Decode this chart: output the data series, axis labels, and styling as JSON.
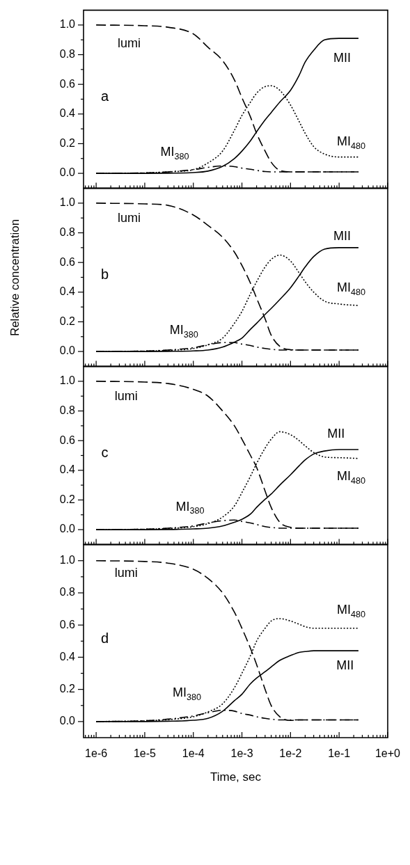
{
  "chart_data": [
    {
      "type": "line",
      "annotations": [
        "a"
      ],
      "log": "x",
      "marker": "none",
      "legend": false,
      "tick_labels": "y",
      "xlim": [
        5.5e-07,
        1
      ],
      "ylim": [
        -0.1,
        1.1
      ],
      "xticks": [
        {
          "value": 6e-07,
          "label": null
        },
        {
          "value": 7e-07,
          "label": null
        },
        {
          "value": 8e-07,
          "label": null
        },
        {
          "value": 9e-07,
          "label": null
        },
        1e-06,
        {
          "value": 2e-06,
          "label": null
        },
        {
          "value": 3e-06,
          "label": null
        },
        {
          "value": 4e-06,
          "label": null
        },
        {
          "value": 5e-06,
          "label": null
        },
        {
          "value": 6e-06,
          "label": null
        },
        {
          "value": 7e-06,
          "label": null
        },
        {
          "value": 8e-06,
          "label": null
        },
        {
          "value": 9e-06,
          "label": null
        },
        1e-05,
        {
          "value": 2e-05,
          "label": null
        },
        {
          "value": 3e-05,
          "label": null
        },
        {
          "value": 4e-05,
          "label": null
        },
        {
          "value": 5e-05,
          "label": null
        },
        {
          "value": 6e-05,
          "label": null
        },
        {
          "value": 7e-05,
          "label": null
        },
        {
          "value": 8e-05,
          "label": null
        },
        {
          "value": 9e-05,
          "label": null
        },
        0.0001,
        {
          "value": 0.0002,
          "label": null
        },
        {
          "value": 0.0003,
          "label": null
        },
        {
          "value": 0.0004,
          "label": null
        },
        {
          "value": 0.0005,
          "label": null
        },
        {
          "value": 0.0006,
          "label": null
        },
        {
          "value": 0.0007,
          "label": null
        },
        {
          "value": 0.0008,
          "label": null
        },
        {
          "value": 0.0009,
          "label": null
        },
        0.001,
        {
          "value": 0.002,
          "label": null
        },
        {
          "value": 0.003,
          "label": null
        },
        {
          "value": 0.004,
          "label": null
        },
        {
          "value": 0.005,
          "label": null
        },
        {
          "value": 0.006,
          "label": null
        },
        {
          "value": 0.007,
          "label": null
        },
        {
          "value": 0.008,
          "label": null
        },
        {
          "value": 0.009,
          "label": null
        },
        0.01,
        {
          "value": 0.02,
          "label": null
        },
        {
          "value": 0.03,
          "label": null
        },
        {
          "value": 0.04,
          "label": null
        },
        {
          "value": 0.05,
          "label": null
        },
        {
          "value": 0.06,
          "label": null
        },
        {
          "value": 0.07,
          "label": null
        },
        {
          "value": 0.08,
          "label": null
        },
        {
          "value": 0.09,
          "label": null
        },
        0.1,
        {
          "value": 0.2,
          "label": null
        },
        {
          "value": 0.3,
          "label": null
        },
        {
          "value": 0.4,
          "label": null
        },
        {
          "value": 0.5,
          "label": null
        },
        {
          "value": 0.6,
          "label": null
        },
        {
          "value": 0.7,
          "label": null
        },
        {
          "value": 0.8,
          "label": null
        },
        {
          "value": 0.9,
          "label": null
        },
        1
      ],
      "yticks": [
        {
          "value": 0,
          "label": "0.0"
        },
        {
          "value": 0.1,
          "label": null
        },
        {
          "value": 0.2,
          "label": "0.2"
        },
        {
          "value": 0.3,
          "label": null
        },
        {
          "value": 0.4,
          "label": "0.4"
        },
        {
          "value": 0.5,
          "label": null
        },
        {
          "value": 0.6,
          "label": "0.6"
        },
        {
          "value": 0.7,
          "label": null
        },
        {
          "value": 0.8,
          "label": "0.8"
        },
        {
          "value": 0.9,
          "label": null
        },
        {
          "value": 1,
          "label": "1.0"
        }
      ],
      "x": [
        1e-06,
        1e-05,
        3e-05,
        0.0001,
        0.0002,
        0.0004,
        0.0007,
        0.001,
        0.0015,
        0.002,
        0.003,
        0.004,
        0.006,
        0.01,
        0.015,
        0.02,
        0.03,
        0.05,
        0.1,
        0.25
      ],
      "series": [
        {
          "name": "lumi",
          "color": "#000000",
          "line_style": "dashed",
          "values": [
            1.0,
            0.995,
            0.985,
            0.94,
            0.85,
            0.76,
            0.63,
            0.51,
            0.38,
            0.27,
            0.15,
            0.075,
            0.02,
            0.01,
            0.01,
            0.01,
            0.01,
            0.01,
            0.01,
            0.01
          ]
        },
        {
          "name": "MI$_{380}$",
          "color": "#000000",
          "line_style": "dashdot",
          "values": [
            0,
            0.003,
            0.01,
            0.025,
            0.04,
            0.05,
            0.045,
            0.035,
            0.027,
            0.02,
            0.012,
            0.01,
            0.01,
            0.01,
            0.01,
            0.01,
            0.01,
            0.01,
            0.01,
            0.01
          ]
        },
        {
          "name": "MI$_{480}$",
          "color": "#000000",
          "line_style": "dotted",
          "values": [
            0,
            0.003,
            0.01,
            0.025,
            0.07,
            0.15,
            0.29,
            0.39,
            0.48,
            0.54,
            0.585,
            0.59,
            0.56,
            0.46,
            0.35,
            0.27,
            0.18,
            0.13,
            0.11,
            0.11
          ]
        },
        {
          "name": "MII",
          "color": "#000000",
          "line_style": "solid",
          "values": [
            0,
            0,
            0.001,
            0.005,
            0.015,
            0.047,
            0.1,
            0.15,
            0.22,
            0.28,
            0.36,
            0.41,
            0.48,
            0.56,
            0.66,
            0.75,
            0.83,
            0.9,
            0.91,
            0.91
          ]
        }
      ]
    },
    {
      "type": "line",
      "ylabel": "Relative concentration",
      "annotations": [
        "b"
      ],
      "log": "x",
      "marker": "none",
      "legend": false,
      "tick_labels": "y",
      "xlim": [
        5.5e-07,
        1
      ],
      "ylim": [
        -0.1,
        1.1
      ],
      "xticks": [
        {
          "value": 6e-07,
          "label": null
        },
        {
          "value": 7e-07,
          "label": null
        },
        {
          "value": 8e-07,
          "label": null
        },
        {
          "value": 9e-07,
          "label": null
        },
        1e-06,
        {
          "value": 2e-06,
          "label": null
        },
        {
          "value": 3e-06,
          "label": null
        },
        {
          "value": 4e-06,
          "label": null
        },
        {
          "value": 5e-06,
          "label": null
        },
        {
          "value": 6e-06,
          "label": null
        },
        {
          "value": 7e-06,
          "label": null
        },
        {
          "value": 8e-06,
          "label": null
        },
        {
          "value": 9e-06,
          "label": null
        },
        1e-05,
        {
          "value": 2e-05,
          "label": null
        },
        {
          "value": 3e-05,
          "label": null
        },
        {
          "value": 4e-05,
          "label": null
        },
        {
          "value": 5e-05,
          "label": null
        },
        {
          "value": 6e-05,
          "label": null
        },
        {
          "value": 7e-05,
          "label": null
        },
        {
          "value": 8e-05,
          "label": null
        },
        {
          "value": 9e-05,
          "label": null
        },
        0.0001,
        {
          "value": 0.0002,
          "label": null
        },
        {
          "value": 0.0003,
          "label": null
        },
        {
          "value": 0.0004,
          "label": null
        },
        {
          "value": 0.0005,
          "label": null
        },
        {
          "value": 0.0006,
          "label": null
        },
        {
          "value": 0.0007,
          "label": null
        },
        {
          "value": 0.0008,
          "label": null
        },
        {
          "value": 0.0009,
          "label": null
        },
        0.001,
        {
          "value": 0.002,
          "label": null
        },
        {
          "value": 0.003,
          "label": null
        },
        {
          "value": 0.004,
          "label": null
        },
        {
          "value": 0.005,
          "label": null
        },
        {
          "value": 0.006,
          "label": null
        },
        {
          "value": 0.007,
          "label": null
        },
        {
          "value": 0.008,
          "label": null
        },
        {
          "value": 0.009,
          "label": null
        },
        0.01,
        {
          "value": 0.02,
          "label": null
        },
        {
          "value": 0.03,
          "label": null
        },
        {
          "value": 0.04,
          "label": null
        },
        {
          "value": 0.05,
          "label": null
        },
        {
          "value": 0.06,
          "label": null
        },
        {
          "value": 0.07,
          "label": null
        },
        {
          "value": 0.08,
          "label": null
        },
        {
          "value": 0.09,
          "label": null
        },
        0.1,
        {
          "value": 0.2,
          "label": null
        },
        {
          "value": 0.3,
          "label": null
        },
        {
          "value": 0.4,
          "label": null
        },
        {
          "value": 0.5,
          "label": null
        },
        {
          "value": 0.6,
          "label": null
        },
        {
          "value": 0.7,
          "label": null
        },
        {
          "value": 0.8,
          "label": null
        },
        {
          "value": 0.9,
          "label": null
        },
        1
      ],
      "yticks": [
        {
          "value": 0,
          "label": "0.0"
        },
        {
          "value": 0.1,
          "label": null
        },
        {
          "value": 0.2,
          "label": "0.2"
        },
        {
          "value": 0.3,
          "label": null
        },
        {
          "value": 0.4,
          "label": "0.4"
        },
        {
          "value": 0.5,
          "label": null
        },
        {
          "value": 0.6,
          "label": "0.6"
        },
        {
          "value": 0.7,
          "label": null
        },
        {
          "value": 0.8,
          "label": "0.8"
        },
        {
          "value": 0.9,
          "label": null
        },
        {
          "value": 1,
          "label": "1.0"
        }
      ],
      "x": [
        1e-06,
        1e-05,
        3e-05,
        0.0001,
        0.0002,
        0.0004,
        0.0007,
        0.001,
        0.0015,
        0.002,
        0.003,
        0.004,
        0.006,
        0.01,
        0.015,
        0.02,
        0.03,
        0.05,
        0.1,
        0.25
      ],
      "series": [
        {
          "name": "lumi",
          "color": "#000000",
          "line_style": "dashed",
          "values": [
            1.0,
            0.995,
            0.985,
            0.92,
            0.85,
            0.77,
            0.67,
            0.58,
            0.46,
            0.36,
            0.22,
            0.11,
            0.035,
            0.012,
            0.01,
            0.01,
            0.01,
            0.01,
            0.01,
            0.01
          ]
        },
        {
          "name": "MI$_{380}$",
          "color": "#000000",
          "line_style": "dashdot",
          "values": [
            0,
            0.003,
            0.01,
            0.025,
            0.045,
            0.06,
            0.06,
            0.05,
            0.04,
            0.03,
            0.02,
            0.015,
            0.01,
            0.01,
            0.01,
            0.01,
            0.01,
            0.01,
            0.01,
            0.01
          ]
        },
        {
          "name": "MI$_{480}$",
          "color": "#000000",
          "line_style": "dotted",
          "values": [
            0,
            0.003,
            0.008,
            0.02,
            0.045,
            0.09,
            0.19,
            0.27,
            0.39,
            0.47,
            0.57,
            0.62,
            0.65,
            0.61,
            0.53,
            0.47,
            0.4,
            0.34,
            0.32,
            0.31
          ]
        },
        {
          "name": "MII",
          "color": "#000000",
          "line_style": "solid",
          "values": [
            0,
            0,
            0.001,
            0.004,
            0.01,
            0.03,
            0.063,
            0.09,
            0.15,
            0.19,
            0.25,
            0.29,
            0.35,
            0.43,
            0.51,
            0.57,
            0.64,
            0.69,
            0.7,
            0.7
          ]
        }
      ]
    },
    {
      "type": "line",
      "annotations": [
        "c"
      ],
      "log": "x",
      "marker": "none",
      "legend": false,
      "tick_labels": "y",
      "xlim": [
        5.5e-07,
        1
      ],
      "ylim": [
        -0.1,
        1.1
      ],
      "xticks": [
        {
          "value": 6e-07,
          "label": null
        },
        {
          "value": 7e-07,
          "label": null
        },
        {
          "value": 8e-07,
          "label": null
        },
        {
          "value": 9e-07,
          "label": null
        },
        1e-06,
        {
          "value": 2e-06,
          "label": null
        },
        {
          "value": 3e-06,
          "label": null
        },
        {
          "value": 4e-06,
          "label": null
        },
        {
          "value": 5e-06,
          "label": null
        },
        {
          "value": 6e-06,
          "label": null
        },
        {
          "value": 7e-06,
          "label": null
        },
        {
          "value": 8e-06,
          "label": null
        },
        {
          "value": 9e-06,
          "label": null
        },
        1e-05,
        {
          "value": 2e-05,
          "label": null
        },
        {
          "value": 3e-05,
          "label": null
        },
        {
          "value": 4e-05,
          "label": null
        },
        {
          "value": 5e-05,
          "label": null
        },
        {
          "value": 6e-05,
          "label": null
        },
        {
          "value": 7e-05,
          "label": null
        },
        {
          "value": 8e-05,
          "label": null
        },
        {
          "value": 9e-05,
          "label": null
        },
        0.0001,
        {
          "value": 0.0002,
          "label": null
        },
        {
          "value": 0.0003,
          "label": null
        },
        {
          "value": 0.0004,
          "label": null
        },
        {
          "value": 0.0005,
          "label": null
        },
        {
          "value": 0.0006,
          "label": null
        },
        {
          "value": 0.0007,
          "label": null
        },
        {
          "value": 0.0008,
          "label": null
        },
        {
          "value": 0.0009,
          "label": null
        },
        0.001,
        {
          "value": 0.002,
          "label": null
        },
        {
          "value": 0.003,
          "label": null
        },
        {
          "value": 0.004,
          "label": null
        },
        {
          "value": 0.005,
          "label": null
        },
        {
          "value": 0.006,
          "label": null
        },
        {
          "value": 0.007,
          "label": null
        },
        {
          "value": 0.008,
          "label": null
        },
        {
          "value": 0.009,
          "label": null
        },
        0.01,
        {
          "value": 0.02,
          "label": null
        },
        {
          "value": 0.03,
          "label": null
        },
        {
          "value": 0.04,
          "label": null
        },
        {
          "value": 0.05,
          "label": null
        },
        {
          "value": 0.06,
          "label": null
        },
        {
          "value": 0.07,
          "label": null
        },
        {
          "value": 0.08,
          "label": null
        },
        {
          "value": 0.09,
          "label": null
        },
        0.1,
        {
          "value": 0.2,
          "label": null
        },
        {
          "value": 0.3,
          "label": null
        },
        {
          "value": 0.4,
          "label": null
        },
        {
          "value": 0.5,
          "label": null
        },
        {
          "value": 0.6,
          "label": null
        },
        {
          "value": 0.7,
          "label": null
        },
        {
          "value": 0.8,
          "label": null
        },
        {
          "value": 0.9,
          "label": null
        },
        1
      ],
      "yticks": [
        {
          "value": 0,
          "label": "0.0"
        },
        {
          "value": 0.1,
          "label": null
        },
        {
          "value": 0.2,
          "label": "0.2"
        },
        {
          "value": 0.3,
          "label": null
        },
        {
          "value": 0.4,
          "label": "0.4"
        },
        {
          "value": 0.5,
          "label": null
        },
        {
          "value": 0.6,
          "label": "0.6"
        },
        {
          "value": 0.7,
          "label": null
        },
        {
          "value": 0.8,
          "label": "0.8"
        },
        {
          "value": 0.9,
          "label": null
        },
        {
          "value": 1,
          "label": "1.0"
        }
      ],
      "x": [
        1e-06,
        1e-05,
        3e-05,
        0.0001,
        0.0002,
        0.0004,
        0.0007,
        0.001,
        0.0015,
        0.002,
        0.003,
        0.004,
        0.006,
        0.01,
        0.015,
        0.02,
        0.03,
        0.05,
        0.1,
        0.25
      ],
      "series": [
        {
          "name": "lumi",
          "color": "#000000",
          "line_style": "dashed",
          "values": [
            1.0,
            0.995,
            0.985,
            0.946,
            0.9,
            0.8,
            0.7,
            0.61,
            0.5,
            0.42,
            0.26,
            0.15,
            0.05,
            0.015,
            0.01,
            0.01,
            0.01,
            0.01,
            0.01,
            0.01
          ]
        },
        {
          "name": "MI$_{380}$",
          "color": "#000000",
          "line_style": "dashdot",
          "values": [
            0,
            0.003,
            0.01,
            0.025,
            0.045,
            0.06,
            0.065,
            0.055,
            0.045,
            0.035,
            0.02,
            0.015,
            0.01,
            0.01,
            0.01,
            0.01,
            0.01,
            0.01,
            0.01,
            0.01
          ]
        },
        {
          "name": "MI$_{480}$",
          "color": "#000000",
          "line_style": "dotted",
          "values": [
            0,
            0.003,
            0.008,
            0.02,
            0.04,
            0.085,
            0.16,
            0.25,
            0.36,
            0.445,
            0.55,
            0.61,
            0.66,
            0.64,
            0.6,
            0.565,
            0.52,
            0.49,
            0.485,
            0.48
          ]
        },
        {
          "name": "MII",
          "color": "#000000",
          "line_style": "solid",
          "values": [
            0,
            0,
            0.001,
            0.005,
            0.01,
            0.025,
            0.05,
            0.07,
            0.105,
            0.15,
            0.205,
            0.24,
            0.3,
            0.37,
            0.43,
            0.47,
            0.51,
            0.53,
            0.54,
            0.54
          ]
        }
      ]
    },
    {
      "type": "line",
      "xlabel": "Time, sec",
      "annotations": [
        "d"
      ],
      "log": "x",
      "marker": "none",
      "legend": false,
      "xlim": [
        5.5e-07,
        1
      ],
      "ylim": [
        -0.1,
        1.1
      ],
      "xticks": [
        {
          "value": 6e-07,
          "label": null
        },
        {
          "value": 7e-07,
          "label": null
        },
        {
          "value": 8e-07,
          "label": null
        },
        {
          "value": 9e-07,
          "label": null
        },
        {
          "value": 1e-06,
          "label": "1e-6"
        },
        {
          "value": 2e-06,
          "label": null
        },
        {
          "value": 3e-06,
          "label": null
        },
        {
          "value": 4e-06,
          "label": null
        },
        {
          "value": 5e-06,
          "label": null
        },
        {
          "value": 6e-06,
          "label": null
        },
        {
          "value": 7e-06,
          "label": null
        },
        {
          "value": 8e-06,
          "label": null
        },
        {
          "value": 9e-06,
          "label": null
        },
        {
          "value": 1e-05,
          "label": "1e-5"
        },
        {
          "value": 2e-05,
          "label": null
        },
        {
          "value": 3e-05,
          "label": null
        },
        {
          "value": 4e-05,
          "label": null
        },
        {
          "value": 5e-05,
          "label": null
        },
        {
          "value": 6e-05,
          "label": null
        },
        {
          "value": 7e-05,
          "label": null
        },
        {
          "value": 8e-05,
          "label": null
        },
        {
          "value": 9e-05,
          "label": null
        },
        {
          "value": 0.0001,
          "label": "1e-4"
        },
        {
          "value": 0.0002,
          "label": null
        },
        {
          "value": 0.0003,
          "label": null
        },
        {
          "value": 0.0004,
          "label": null
        },
        {
          "value": 0.0005,
          "label": null
        },
        {
          "value": 0.0006,
          "label": null
        },
        {
          "value": 0.0007,
          "label": null
        },
        {
          "value": 0.0008,
          "label": null
        },
        {
          "value": 0.0009,
          "label": null
        },
        {
          "value": 0.001,
          "label": "1e-3"
        },
        {
          "value": 0.002,
          "label": null
        },
        {
          "value": 0.003,
          "label": null
        },
        {
          "value": 0.004,
          "label": null
        },
        {
          "value": 0.005,
          "label": null
        },
        {
          "value": 0.006,
          "label": null
        },
        {
          "value": 0.007,
          "label": null
        },
        {
          "value": 0.008,
          "label": null
        },
        {
          "value": 0.009,
          "label": null
        },
        {
          "value": 0.01,
          "label": "1e-2"
        },
        {
          "value": 0.02,
          "label": null
        },
        {
          "value": 0.03,
          "label": null
        },
        {
          "value": 0.04,
          "label": null
        },
        {
          "value": 0.05,
          "label": null
        },
        {
          "value": 0.06,
          "label": null
        },
        {
          "value": 0.07,
          "label": null
        },
        {
          "value": 0.08,
          "label": null
        },
        {
          "value": 0.09,
          "label": null
        },
        {
          "value": 0.1,
          "label": "1e-1"
        },
        {
          "value": 0.2,
          "label": null
        },
        {
          "value": 0.3,
          "label": null
        },
        {
          "value": 0.4,
          "label": null
        },
        {
          "value": 0.5,
          "label": null
        },
        {
          "value": 0.6,
          "label": null
        },
        {
          "value": 0.7,
          "label": null
        },
        {
          "value": 0.8,
          "label": null
        },
        {
          "value": 0.9,
          "label": null
        },
        {
          "value": 1,
          "label": "1e+0"
        }
      ],
      "yticks": [
        {
          "value": 0,
          "label": "0.0"
        },
        {
          "value": 0.1,
          "label": null
        },
        {
          "value": 0.2,
          "label": "0.2"
        },
        {
          "value": 0.3,
          "label": null
        },
        {
          "value": 0.4,
          "label": "0.4"
        },
        {
          "value": 0.5,
          "label": null
        },
        {
          "value": 0.6,
          "label": "0.6"
        },
        {
          "value": 0.7,
          "label": null
        },
        {
          "value": 0.8,
          "label": "0.8"
        },
        {
          "value": 0.9,
          "label": null
        },
        {
          "value": 1,
          "label": "1.0"
        }
      ],
      "x": [
        1e-06,
        1e-05,
        3e-05,
        0.0001,
        0.0002,
        0.0004,
        0.0007,
        0.001,
        0.0015,
        0.002,
        0.003,
        0.004,
        0.006,
        0.01,
        0.015,
        0.02,
        0.03,
        0.05,
        0.1,
        0.25
      ],
      "series": [
        {
          "name": "lumi",
          "color": "#000000",
          "line_style": "dashed",
          "values": [
            1.0,
            0.995,
            0.985,
            0.947,
            0.89,
            0.8,
            0.68,
            0.58,
            0.455,
            0.355,
            0.2,
            0.1,
            0.03,
            0.007,
            0.01,
            0.01,
            0.01,
            0.01,
            0.01,
            0.01
          ]
        },
        {
          "name": "MI$_{380}$",
          "color": "#000000",
          "line_style": "dashdot",
          "values": [
            0,
            0.005,
            0.015,
            0.035,
            0.055,
            0.07,
            0.065,
            0.05,
            0.04,
            0.03,
            0.02,
            0.015,
            0.01,
            0.01,
            0.01,
            0.01,
            0.01,
            0.01,
            0.01,
            0.01
          ]
        },
        {
          "name": "MI$_{480}$",
          "color": "#000000",
          "line_style": "dotted",
          "values": [
            0,
            0.005,
            0.012,
            0.03,
            0.06,
            0.11,
            0.21,
            0.3,
            0.41,
            0.5,
            0.58,
            0.625,
            0.64,
            0.625,
            0.605,
            0.59,
            0.58,
            0.58,
            0.58,
            0.58
          ]
        },
        {
          "name": "MII",
          "color": "#000000",
          "line_style": "solid",
          "values": [
            0,
            0,
            0.002,
            0.008,
            0.02,
            0.064,
            0.13,
            0.17,
            0.235,
            0.27,
            0.31,
            0.34,
            0.38,
            0.41,
            0.43,
            0.435,
            0.44,
            0.44,
            0.44,
            0.44
          ]
        }
      ]
    }
  ]
}
